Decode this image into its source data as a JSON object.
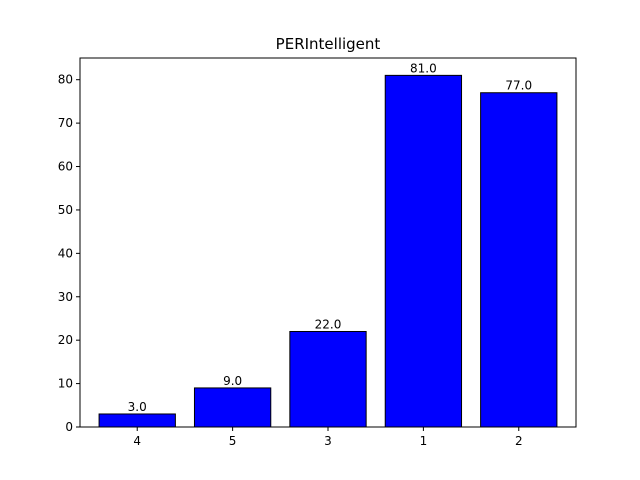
{
  "chart_data": {
    "type": "bar",
    "title": "PERIntelligent",
    "xlabel": "",
    "ylabel": "",
    "categories": [
      "4",
      "5",
      "3",
      "1",
      "2"
    ],
    "values": [
      3.0,
      9.0,
      22.0,
      81.0,
      77.0
    ],
    "data_labels": [
      "3.0",
      "9.0",
      "22.0",
      "81.0",
      "77.0"
    ],
    "ylim": [
      0,
      85
    ],
    "yticks": [
      0,
      10,
      20,
      30,
      40,
      50,
      60,
      70,
      80
    ],
    "grid": false,
    "legend": "none",
    "colors": {
      "bar_fill": "#0000ff",
      "bar_edge": "#000000"
    }
  }
}
